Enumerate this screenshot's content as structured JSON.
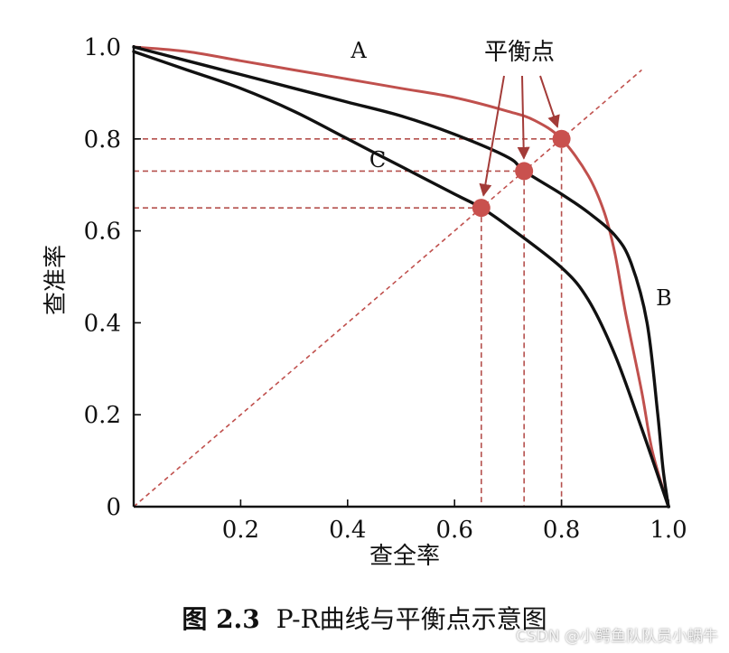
{
  "chart_data": {
    "type": "line",
    "xlabel": "查全率",
    "ylabel": "查准率",
    "xlim": [
      0,
      1
    ],
    "ylim": [
      0,
      1
    ],
    "x_ticks": [
      0.2,
      0.4,
      0.6,
      0.8,
      1.0
    ],
    "x_tick_labels": [
      "0.2",
      "0.4",
      "0.6",
      "0.8",
      "1.0"
    ],
    "y_ticks": [
      0,
      0.2,
      0.4,
      0.6,
      0.8,
      1.0
    ],
    "y_tick_labels": [
      "0",
      "0.2",
      "0.4",
      "0.6",
      "0.8",
      "1.0"
    ],
    "grid": false,
    "series": [
      {
        "name": "A",
        "color": "#c0504d",
        "x": [
          0,
          0.1,
          0.2,
          0.3,
          0.4,
          0.5,
          0.6,
          0.7,
          0.75,
          0.8,
          0.85,
          0.88,
          0.9,
          0.92,
          0.95,
          0.97,
          1.0
        ],
        "y": [
          1.0,
          0.99,
          0.97,
          0.95,
          0.93,
          0.91,
          0.89,
          0.86,
          0.84,
          0.8,
          0.72,
          0.64,
          0.55,
          0.42,
          0.25,
          0.12,
          0
        ]
      },
      {
        "name": "B",
        "color": "#111111",
        "x": [
          0,
          0.1,
          0.2,
          0.3,
          0.4,
          0.5,
          0.6,
          0.7,
          0.73,
          0.8,
          0.85,
          0.9,
          0.93,
          0.96,
          0.98,
          0.99,
          1.0
        ],
        "y": [
          1.0,
          0.97,
          0.94,
          0.91,
          0.88,
          0.85,
          0.81,
          0.76,
          0.73,
          0.68,
          0.64,
          0.59,
          0.53,
          0.4,
          0.2,
          0.08,
          0
        ]
      },
      {
        "name": "C",
        "color": "#111111",
        "x": [
          0,
          0.1,
          0.2,
          0.3,
          0.4,
          0.5,
          0.6,
          0.65,
          0.7,
          0.8,
          0.85,
          0.9,
          0.95,
          1.0
        ],
        "y": [
          0.99,
          0.95,
          0.91,
          0.86,
          0.8,
          0.74,
          0.68,
          0.65,
          0.61,
          0.52,
          0.45,
          0.33,
          0.17,
          0
        ]
      }
    ],
    "diagonal": {
      "x": [
        0,
        0.95
      ],
      "y": [
        0,
        0.95
      ],
      "color": "#c0504d",
      "style": "dashed"
    },
    "break_even_points": [
      {
        "curve": "A",
        "x": 0.8,
        "y": 0.8
      },
      {
        "curve": "B",
        "x": 0.73,
        "y": 0.73
      },
      {
        "curve": "C",
        "x": 0.65,
        "y": 0.65
      }
    ],
    "annotation": "平衡点"
  },
  "caption": {
    "figure_number": "图 2.3",
    "title": "P-R曲线与平衡点示意图"
  },
  "watermark": "CSDN @小鳄鱼队队员小蜗牛"
}
